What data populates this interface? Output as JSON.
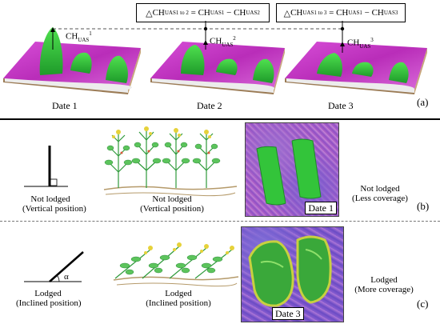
{
  "section_a": {
    "panel_label": "(a)",
    "dates": [
      "Date 1",
      "Date 2",
      "Date 3"
    ],
    "ch_labels": [
      {
        "base": "CH",
        "sub": "UAS",
        "sup": "1"
      },
      {
        "base": "CH",
        "sub": "UAS",
        "sup": "2"
      },
      {
        "base": "CH",
        "sub": "UAS",
        "sup": "3"
      }
    ],
    "equation_1to2": {
      "delta": "△",
      "lhs_base": "CH",
      "lhs_sub": "UAS",
      "lhs_sup": "1 to 2",
      "eq": "=",
      "a_base": "CH",
      "a_sub": "UAS",
      "a_sup": "1",
      "minus": "−",
      "b_base": "CH",
      "b_sub": "UAS",
      "b_sup": "2"
    },
    "equation_1to3": {
      "delta": "△",
      "lhs_base": "CH",
      "lhs_sub": "UAS",
      "lhs_sup": "1 to 3",
      "eq": "=",
      "a_base": "CH",
      "a_sub": "UAS",
      "a_sup": "1",
      "minus": "−",
      "b_base": "CH",
      "b_sub": "UAS",
      "b_sup": "3"
    }
  },
  "section_b": {
    "panel_label": "(b)",
    "stick_label": [
      "Not lodged",
      "(Vertical position)"
    ],
    "plant_label": [
      "Not lodged",
      "(Vertical position)"
    ],
    "photo_tag": "Date 1",
    "coverage_label": [
      "Not lodged",
      "(Less coverage)"
    ]
  },
  "section_c": {
    "panel_label": "(c)",
    "angle_symbol": "α",
    "stick_label": [
      "Lodged",
      "(Inclined position)"
    ],
    "plant_label": [
      "Lodged",
      "(Inclined position)"
    ],
    "photo_tag": "Date 3",
    "coverage_label": [
      "Lodged",
      "(More coverage)"
    ]
  },
  "colors": {
    "terrain_magenta": "#c836c8",
    "crop_green": "#2fc42f",
    "soil_edge": "#b08a60",
    "plant_green": "#5cc45c",
    "plant_yellow": "#e6d23a",
    "ground_line": "#b59a6a"
  }
}
